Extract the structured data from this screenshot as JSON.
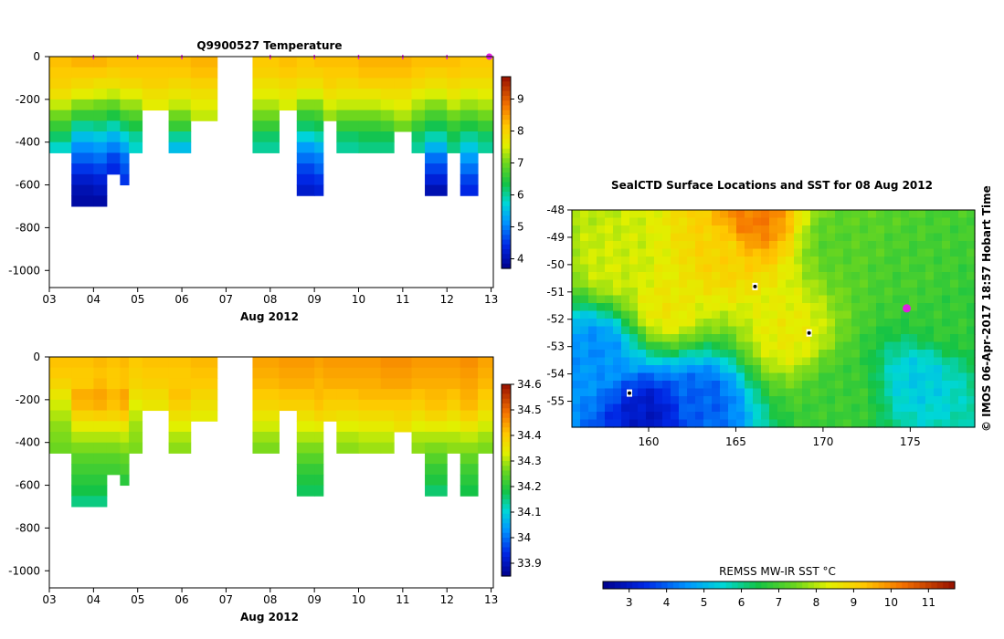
{
  "chart_data": [
    {
      "type": "heatmap",
      "title": "Q9900527  Temperature",
      "xlabel": "Aug 2012",
      "ylabel": "",
      "x_ticks": [
        "03",
        "04",
        "05",
        "06",
        "07",
        "08",
        "09",
        "10",
        "11",
        "12",
        "13"
      ],
      "x_range": [
        3,
        13.05
      ],
      "y_ticks": [
        0,
        -200,
        -400,
        -600,
        -800,
        -1000
      ],
      "y_range": [
        -1080,
        0
      ],
      "colorbar": {
        "min": 3.7,
        "max": 9.7,
        "ticks": [
          4,
          5,
          6,
          7,
          8,
          9
        ]
      },
      "profile_markers_day": [
        4,
        5,
        6,
        8,
        9,
        10,
        11,
        12
      ],
      "latest_marker_day": 13,
      "profiles": [
        {
          "x0": 3.0,
          "x1": 3.5,
          "d": [
            8.2,
            8.1,
            8.0,
            7.8,
            7.4,
            7.0,
            6.6,
            6.2,
            5.8
          ]
        },
        {
          "x0": 3.5,
          "x1": 4.0,
          "d": [
            8.3,
            8.1,
            7.9,
            7.6,
            7.1,
            6.6,
            6.0,
            5.5,
            5.1,
            4.8,
            4.5,
            4.2,
            4.0,
            3.9
          ]
        },
        {
          "x0": 4.0,
          "x1": 4.3,
          "d": [
            8.3,
            8.1,
            7.8,
            7.5,
            7.0,
            6.6,
            6.1,
            5.6,
            5.2,
            4.9,
            4.6,
            4.3,
            4.1,
            3.9
          ]
        },
        {
          "x0": 4.3,
          "x1": 4.6,
          "d": [
            8.2,
            8.0,
            7.8,
            7.4,
            6.9,
            6.4,
            5.9,
            5.4,
            5.0,
            4.6,
            4.4
          ]
        },
        {
          "x0": 4.6,
          "x1": 4.8,
          "d": [
            8.2,
            8.1,
            7.9,
            7.6,
            7.2,
            6.7,
            6.2,
            5.7,
            5.3,
            4.9,
            4.7,
            4.5
          ]
        },
        {
          "x0": 4.8,
          "x1": 5.1,
          "d": [
            8.2,
            8.1,
            7.9,
            7.6,
            7.2,
            6.8,
            6.4,
            6.0,
            5.8
          ]
        },
        {
          "x0": 5.1,
          "x1": 5.7,
          "d": [
            8.2,
            8.1,
            8.0,
            7.8,
            7.6
          ]
        },
        {
          "x0": 5.7,
          "x1": 6.2,
          "d": [
            8.2,
            8.1,
            7.9,
            7.7,
            7.4,
            7.0,
            6.6,
            6.0,
            5.5
          ]
        },
        {
          "x0": 6.2,
          "x1": 6.8,
          "d": [
            8.3,
            8.2,
            8.0,
            7.8,
            7.6,
            7.4
          ]
        },
        {
          "x0": 7.6,
          "x1": 8.2,
          "d": [
            8.1,
            8.0,
            7.8,
            7.6,
            7.3,
            7.0,
            6.6,
            6.2,
            6.0
          ]
        },
        {
          "x0": 8.2,
          "x1": 8.6,
          "d": [
            8.2,
            8.1,
            7.9,
            7.7,
            7.5
          ]
        },
        {
          "x0": 8.6,
          "x1": 9.0,
          "d": [
            8.1,
            8.0,
            7.8,
            7.5,
            7.1,
            6.6,
            6.2,
            5.7,
            5.2,
            4.9,
            4.6,
            4.4,
            4.2
          ]
        },
        {
          "x0": 9.0,
          "x1": 9.2,
          "d": [
            8.2,
            8.0,
            7.8,
            7.5,
            7.1,
            6.7,
            6.3,
            5.9,
            5.4,
            5.0,
            4.8,
            4.5,
            4.3
          ]
        },
        {
          "x0": 9.2,
          "x1": 9.5,
          "d": [
            8.2,
            8.1,
            8.0,
            7.8,
            7.5,
            7.2
          ]
        },
        {
          "x0": 9.5,
          "x1": 10.0,
          "d": [
            8.2,
            8.1,
            7.9,
            7.7,
            7.4,
            7.0,
            6.6,
            6.2,
            6.0
          ]
        },
        {
          "x0": 10.0,
          "x1": 10.5,
          "d": [
            8.3,
            8.2,
            8.0,
            7.7,
            7.4,
            7.0,
            6.6,
            6.3,
            6.1
          ]
        },
        {
          "x0": 10.5,
          "x1": 10.8,
          "d": [
            8.3,
            8.2,
            8.0,
            7.8,
            7.5,
            7.1,
            6.7,
            6.3,
            6.1
          ]
        },
        {
          "x0": 10.8,
          "x1": 11.2,
          "d": [
            8.3,
            8.2,
            8.0,
            7.8,
            7.6,
            7.3,
            7.0
          ]
        },
        {
          "x0": 11.2,
          "x1": 11.5,
          "d": [
            8.2,
            8.1,
            7.9,
            7.6,
            7.3,
            7.0,
            6.6,
            6.2,
            6.0
          ]
        },
        {
          "x0": 11.5,
          "x1": 12.0,
          "d": [
            8.2,
            8.0,
            7.8,
            7.5,
            7.1,
            6.7,
            6.3,
            5.9,
            5.4,
            4.9,
            4.6,
            4.3,
            4.0
          ]
        },
        {
          "x0": 12.0,
          "x1": 12.3,
          "d": [
            8.2,
            8.1,
            7.9,
            7.7,
            7.4,
            7.0,
            6.6,
            6.3,
            6.1
          ]
        },
        {
          "x0": 12.3,
          "x1": 12.7,
          "d": [
            8.1,
            8.0,
            7.8,
            7.5,
            7.2,
            6.8,
            6.4,
            6.0,
            5.6,
            5.2,
            4.9,
            4.6,
            4.4
          ]
        },
        {
          "x0": 12.7,
          "x1": 13.05,
          "d": [
            8.1,
            8.0,
            7.8,
            7.6,
            7.3,
            7.0,
            6.6,
            6.2,
            6.0
          ]
        }
      ]
    },
    {
      "type": "heatmap",
      "title": "",
      "xlabel": "Aug 2012",
      "ylabel": "",
      "x_ticks": [
        "03",
        "04",
        "05",
        "06",
        "07",
        "08",
        "09",
        "10",
        "11",
        "12",
        "13"
      ],
      "x_range": [
        3,
        13.05
      ],
      "y_ticks": [
        0,
        -200,
        -400,
        -600,
        -800,
        -1000
      ],
      "y_range": [
        -1080,
        0
      ],
      "colorbar": {
        "min": 33.85,
        "max": 34.6,
        "ticks": [
          "34.6",
          "34.5",
          "34.4",
          "34.3",
          "34.2",
          "34.1",
          "34",
          "33.9"
        ]
      },
      "profiles": [
        {
          "x0": 3.0,
          "x1": 3.5,
          "d": [
            34.41,
            34.4,
            34.38,
            34.35,
            34.32,
            34.3,
            34.28,
            34.27,
            34.26
          ]
        },
        {
          "x0": 3.5,
          "x1": 4.0,
          "d": [
            34.41,
            34.4,
            34.4,
            34.43,
            34.42,
            34.38,
            34.34,
            34.3,
            34.27,
            34.24,
            34.22,
            34.2,
            34.18,
            34.15
          ]
        },
        {
          "x0": 4.0,
          "x1": 4.3,
          "d": [
            34.42,
            34.41,
            34.42,
            34.44,
            34.43,
            34.39,
            34.34,
            34.3,
            34.27,
            34.24,
            34.22,
            34.2,
            34.18,
            34.15
          ]
        },
        {
          "x0": 4.3,
          "x1": 4.6,
          "d": [
            34.41,
            34.4,
            34.4,
            34.42,
            34.41,
            34.38,
            34.34,
            34.3,
            34.27,
            34.24,
            34.22
          ]
        },
        {
          "x0": 4.6,
          "x1": 4.8,
          "d": [
            34.42,
            34.41,
            34.41,
            34.44,
            34.43,
            34.4,
            34.35,
            34.31,
            34.28,
            34.25,
            34.23,
            34.2
          ]
        },
        {
          "x0": 4.8,
          "x1": 5.1,
          "d": [
            34.4,
            34.39,
            34.38,
            34.36,
            34.33,
            34.31,
            34.29,
            34.28,
            34.27
          ]
        },
        {
          "x0": 5.1,
          "x1": 5.7,
          "d": [
            34.41,
            34.4,
            34.39,
            34.37,
            34.35
          ]
        },
        {
          "x0": 5.7,
          "x1": 6.2,
          "d": [
            34.41,
            34.4,
            34.4,
            34.41,
            34.39,
            34.36,
            34.33,
            34.3,
            34.28
          ]
        },
        {
          "x0": 6.2,
          "x1": 6.8,
          "d": [
            34.42,
            34.41,
            34.4,
            34.38,
            34.36,
            34.34
          ]
        },
        {
          "x0": 7.6,
          "x1": 8.2,
          "d": [
            34.44,
            34.43,
            34.42,
            34.4,
            34.38,
            34.35,
            34.32,
            34.29,
            34.27
          ]
        },
        {
          "x0": 8.2,
          "x1": 8.6,
          "d": [
            34.45,
            34.44,
            34.43,
            34.41,
            34.39
          ]
        },
        {
          "x0": 8.6,
          "x1": 9.0,
          "d": [
            34.45,
            34.44,
            34.43,
            34.41,
            34.39,
            34.36,
            34.33,
            34.3,
            34.27,
            34.24,
            34.21,
            34.19,
            34.17
          ]
        },
        {
          "x0": 9.0,
          "x1": 9.2,
          "d": [
            34.44,
            34.43,
            34.42,
            34.42,
            34.41,
            34.38,
            34.34,
            34.3,
            34.27,
            34.24,
            34.21,
            34.19,
            34.17
          ]
        },
        {
          "x0": 9.2,
          "x1": 9.5,
          "d": [
            34.45,
            34.44,
            34.43,
            34.41,
            34.39,
            34.37
          ]
        },
        {
          "x0": 9.5,
          "x1": 10.0,
          "d": [
            34.45,
            34.44,
            34.43,
            34.41,
            34.39,
            34.36,
            34.33,
            34.3,
            34.28
          ]
        },
        {
          "x0": 10.0,
          "x1": 10.5,
          "d": [
            34.45,
            34.44,
            34.43,
            34.42,
            34.4,
            34.37,
            34.34,
            34.31,
            34.29
          ]
        },
        {
          "x0": 10.5,
          "x1": 10.8,
          "d": [
            34.46,
            34.45,
            34.44,
            34.42,
            34.4,
            34.37,
            34.34,
            34.31,
            34.29
          ]
        },
        {
          "x0": 10.8,
          "x1": 11.2,
          "d": [
            34.46,
            34.45,
            34.44,
            34.42,
            34.4,
            34.38,
            34.36
          ]
        },
        {
          "x0": 11.2,
          "x1": 11.5,
          "d": [
            34.45,
            34.44,
            34.43,
            34.41,
            34.39,
            34.36,
            34.33,
            34.3,
            34.28
          ]
        },
        {
          "x0": 11.5,
          "x1": 12.0,
          "d": [
            34.45,
            34.44,
            34.43,
            34.42,
            34.41,
            34.38,
            34.34,
            34.3,
            34.27,
            34.24,
            34.21,
            34.19,
            34.16
          ]
        },
        {
          "x0": 12.0,
          "x1": 12.3,
          "d": [
            34.45,
            34.44,
            34.43,
            34.41,
            34.39,
            34.36,
            34.33,
            34.3,
            34.28
          ]
        },
        {
          "x0": 12.3,
          "x1": 12.7,
          "d": [
            34.46,
            34.45,
            34.44,
            34.43,
            34.42,
            34.39,
            34.35,
            34.31,
            34.28,
            34.25,
            34.22,
            34.2,
            34.18
          ]
        },
        {
          "x0": 12.7,
          "x1": 13.05,
          "d": [
            34.44,
            34.43,
            34.42,
            34.4,
            34.38,
            34.35,
            34.32,
            34.29,
            34.27
          ]
        }
      ]
    },
    {
      "type": "heatmap",
      "title": "SealCTD Surface Locations and SST for 08 Aug 2012",
      "xlabel": "",
      "ylabel": "",
      "x_ticks": [
        160,
        165,
        170,
        175
      ],
      "y_ticks": [
        -48,
        -49,
        -50,
        -51,
        -52,
        -53,
        -54,
        -55
      ],
      "x_range": [
        155.6,
        178.7
      ],
      "y_range": [
        -55.95,
        -48
      ],
      "colorbar": {
        "label": "REMSS MW-IR SST °C",
        "min": 2.3,
        "max": 11.7,
        "ticks": [
          3,
          4,
          5,
          6,
          7,
          8,
          9,
          10,
          11
        ]
      },
      "sst_centers": [
        {
          "lon": 166,
          "lat": -48.3,
          "t": 10.2
        },
        {
          "lon": 164,
          "lat": -49.6,
          "t": 9.0
        },
        {
          "lon": 158,
          "lat": -50.0,
          "t": 8.2
        },
        {
          "lon": 161,
          "lat": -51.5,
          "t": 8.6
        },
        {
          "lon": 157,
          "lat": -53.1,
          "t": 4.5
        },
        {
          "lon": 160,
          "lat": -55.5,
          "t": 3.0
        },
        {
          "lon": 163,
          "lat": -55.0,
          "t": 4.0
        },
        {
          "lon": 168,
          "lat": -52.5,
          "t": 8.5
        },
        {
          "lon": 171,
          "lat": -49.2,
          "t": 7.2
        },
        {
          "lon": 175,
          "lat": -50.5,
          "t": 7.0
        },
        {
          "lon": 177,
          "lat": -52.0,
          "t": 6.8
        },
        {
          "lon": 175.5,
          "lat": -54.2,
          "t": 5.3
        },
        {
          "lon": 171,
          "lat": -54.8,
          "t": 6.9
        }
      ],
      "seal_locations": [
        {
          "lon": 166.1,
          "lat": -50.8
        },
        {
          "lon": 169.2,
          "lat": -52.5
        },
        {
          "lon": 158.9,
          "lat": -54.7
        }
      ],
      "latest_location": {
        "lon": 174.8,
        "lat": -51.6
      }
    }
  ],
  "credit": "© IMOS 06-Apr-2017 18:57 Hobart Time",
  "colors": {
    "marker": "#e020e0"
  }
}
